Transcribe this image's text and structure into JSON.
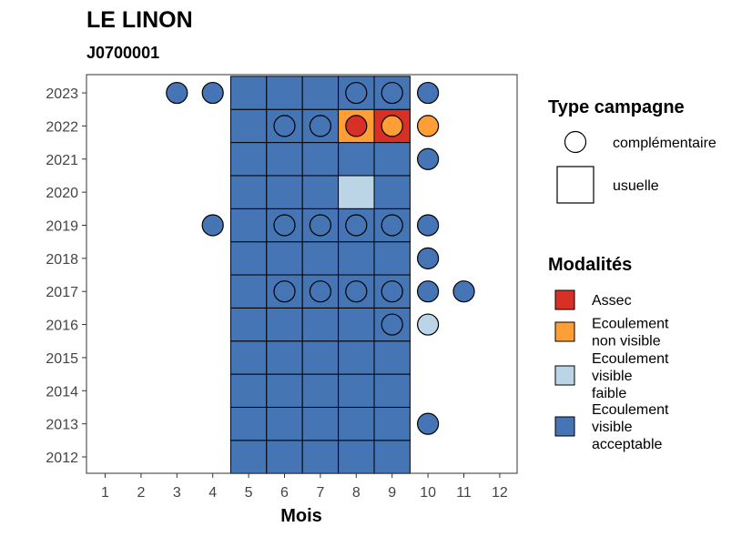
{
  "chart_data": {
    "type": "heatmap",
    "title": "LE LINON",
    "subtitle": "J0700001",
    "xlabel": "Mois",
    "ylabel": "",
    "x_ticks": [
      "1",
      "2",
      "3",
      "4",
      "5",
      "6",
      "7",
      "8",
      "9",
      "10",
      "11",
      "12"
    ],
    "y_ticks": [
      "2012",
      "2013",
      "2014",
      "2015",
      "2016",
      "2017",
      "2018",
      "2019",
      "2020",
      "2021",
      "2022",
      "2023"
    ],
    "legend_type": {
      "title": "Type campagne",
      "items": [
        {
          "key": "complementaire",
          "label": "complémentaire",
          "shape": "circle"
        },
        {
          "key": "usuelle",
          "label": "usuelle",
          "shape": "square"
        }
      ]
    },
    "legend_modalites": {
      "title": "Modalités",
      "items": [
        {
          "key": "assec",
          "lines": [
            "Assec"
          ],
          "color": "#d73027"
        },
        {
          "key": "ecoul_nv",
          "lines": [
            "Ecoulement",
            "non visible"
          ],
          "color": "#fd9f34"
        },
        {
          "key": "ecoul_vf",
          "lines": [
            "Ecoulement",
            "visible",
            "faible"
          ],
          "color": "#bcd5e6"
        },
        {
          "key": "ecoul_va",
          "lines": [
            "Ecoulement",
            "visible",
            "acceptable"
          ],
          "color": "#4575b4"
        }
      ]
    },
    "usuelle": [
      {
        "year": 2012,
        "months": {
          "5": "ecoul_va",
          "6": "ecoul_va",
          "7": "ecoul_va",
          "8": "ecoul_va",
          "9": "ecoul_va"
        }
      },
      {
        "year": 2013,
        "months": {
          "5": "ecoul_va",
          "6": "ecoul_va",
          "7": "ecoul_va",
          "8": "ecoul_va",
          "9": "ecoul_va"
        }
      },
      {
        "year": 2014,
        "months": {
          "5": "ecoul_va",
          "6": "ecoul_va",
          "7": "ecoul_va",
          "8": "ecoul_va",
          "9": "ecoul_va"
        }
      },
      {
        "year": 2015,
        "months": {
          "5": "ecoul_va",
          "6": "ecoul_va",
          "7": "ecoul_va",
          "8": "ecoul_va",
          "9": "ecoul_va"
        }
      },
      {
        "year": 2016,
        "months": {
          "5": "ecoul_va",
          "6": "ecoul_va",
          "7": "ecoul_va",
          "8": "ecoul_va",
          "9": "ecoul_va"
        }
      },
      {
        "year": 2017,
        "months": {
          "5": "ecoul_va",
          "6": "ecoul_va",
          "7": "ecoul_va",
          "8": "ecoul_va",
          "9": "ecoul_va"
        }
      },
      {
        "year": 2018,
        "months": {
          "5": "ecoul_va",
          "6": "ecoul_va",
          "7": "ecoul_va",
          "8": "ecoul_va",
          "9": "ecoul_va"
        }
      },
      {
        "year": 2019,
        "months": {
          "5": "ecoul_va",
          "6": "ecoul_va",
          "7": "ecoul_va",
          "8": "ecoul_va",
          "9": "ecoul_va"
        }
      },
      {
        "year": 2020,
        "months": {
          "5": "ecoul_va",
          "6": "ecoul_va",
          "7": "ecoul_va",
          "8": "ecoul_vf",
          "9": "ecoul_va"
        }
      },
      {
        "year": 2021,
        "months": {
          "5": "ecoul_va",
          "6": "ecoul_va",
          "7": "ecoul_va",
          "8": "ecoul_va",
          "9": "ecoul_va"
        }
      },
      {
        "year": 2022,
        "months": {
          "5": "ecoul_va",
          "6": "ecoul_va",
          "7": "ecoul_va",
          "8": "ecoul_nv",
          "9": "assec"
        }
      },
      {
        "year": 2023,
        "months": {
          "5": "ecoul_va",
          "6": "ecoul_va",
          "7": "ecoul_va",
          "8": "ecoul_va",
          "9": "ecoul_va"
        }
      }
    ],
    "complementaire": [
      {
        "year": 2013,
        "months": {
          "10": "ecoul_va"
        }
      },
      {
        "year": 2016,
        "months": {
          "9": "ecoul_va",
          "10": "ecoul_vf"
        }
      },
      {
        "year": 2017,
        "months": {
          "6": "ecoul_va",
          "7": "ecoul_va",
          "8": "ecoul_va",
          "9": "ecoul_va",
          "10": "ecoul_va",
          "11": "ecoul_va"
        }
      },
      {
        "year": 2018,
        "months": {
          "10": "ecoul_va"
        }
      },
      {
        "year": 2019,
        "months": {
          "4": "ecoul_va",
          "6": "ecoul_va",
          "7": "ecoul_va",
          "8": "ecoul_va",
          "9": "ecoul_va",
          "10": "ecoul_va"
        }
      },
      {
        "year": 2021,
        "months": {
          "10": "ecoul_va"
        }
      },
      {
        "year": 2022,
        "months": {
          "6": "ecoul_va",
          "7": "ecoul_va",
          "8": "assec",
          "9": "ecoul_nv",
          "10": "ecoul_nv"
        }
      },
      {
        "year": 2023,
        "months": {
          "3": "ecoul_va",
          "4": "ecoul_va",
          "8": "ecoul_va",
          "9": "ecoul_va",
          "10": "ecoul_va"
        }
      }
    ]
  }
}
